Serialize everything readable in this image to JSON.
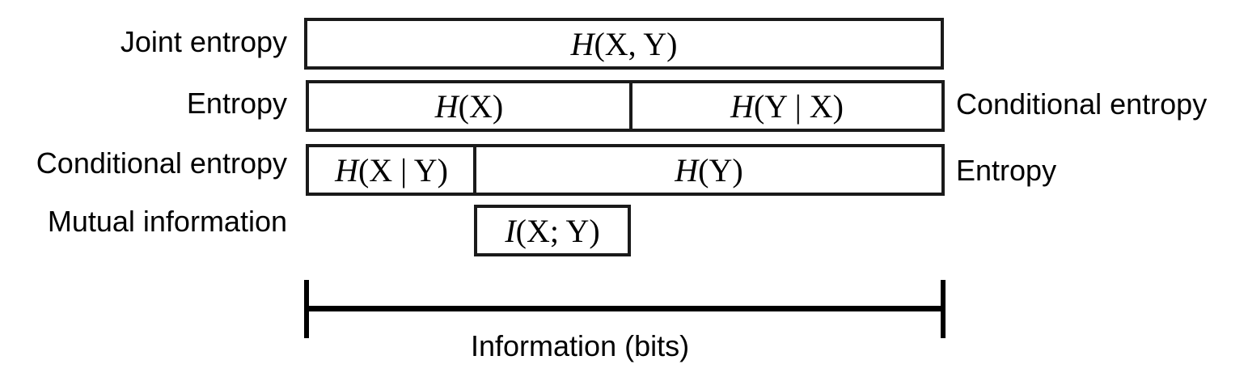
{
  "left_labels": {
    "joint": "Joint entropy",
    "entropy": "Entropy",
    "conditional": "Conditional entropy",
    "mutual": "Mutual information"
  },
  "right_labels": {
    "conditional": "Conditional entropy",
    "entropy": "Entropy"
  },
  "boxes": {
    "joint": {
      "func": "H",
      "args": "(X, Y)"
    },
    "hx": {
      "func": "H",
      "args": "(X)"
    },
    "hy_given_x": {
      "func": "H",
      "args": "(Y | X)"
    },
    "hx_given_y": {
      "func": "H",
      "args": "(X | Y)"
    },
    "hy": {
      "func": "H",
      "args": "(Y)"
    },
    "mutual": {
      "func": "I",
      "args": "(X; Y)"
    }
  },
  "axis": {
    "label": "Information (bits)"
  },
  "colors": {
    "stroke": "#1a1a1a",
    "background": "#ffffff"
  }
}
